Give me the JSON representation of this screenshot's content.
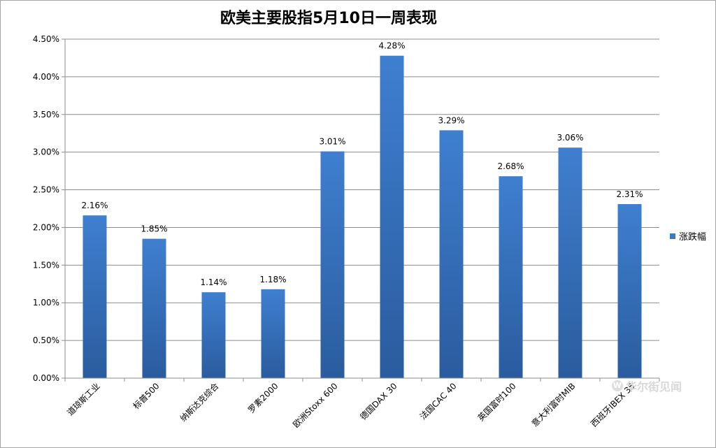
{
  "chart_data": {
    "type": "bar",
    "title": "欧美主要股指5月10日一周表现",
    "categories": [
      "道琼斯工业",
      "标普500",
      "纳斯达克综合",
      "罗素2000",
      "欧洲Stoxx 600",
      "德国DAX 30",
      "法国CAC 40",
      "英国富时100",
      "意大利富时MIB",
      "西班牙IBEX 35"
    ],
    "series": [
      {
        "name": "涨跌幅",
        "values": [
          2.16,
          1.85,
          1.14,
          1.18,
          3.01,
          4.28,
          3.29,
          2.68,
          3.06,
          2.31
        ]
      }
    ],
    "data_labels": [
      "2.16%",
      "1.85%",
      "1.14%",
      "1.18%",
      "3.01%",
      "4.28%",
      "3.29%",
      "2.68%",
      "3.06%",
      "2.31%"
    ],
    "y_ticks": [
      "0.00%",
      "0.50%",
      "1.00%",
      "1.50%",
      "2.00%",
      "2.50%",
      "3.00%",
      "3.50%",
      "4.00%",
      "4.50%"
    ],
    "ylim": [
      0,
      4.5
    ],
    "grid": true,
    "legend_position": "right",
    "bar_color_top": "#3f7fd0",
    "bar_color_bottom": "#2a5c9e"
  },
  "legend": {
    "label": "涨跌幅"
  },
  "watermark": {
    "text": "华尔街见闻"
  }
}
